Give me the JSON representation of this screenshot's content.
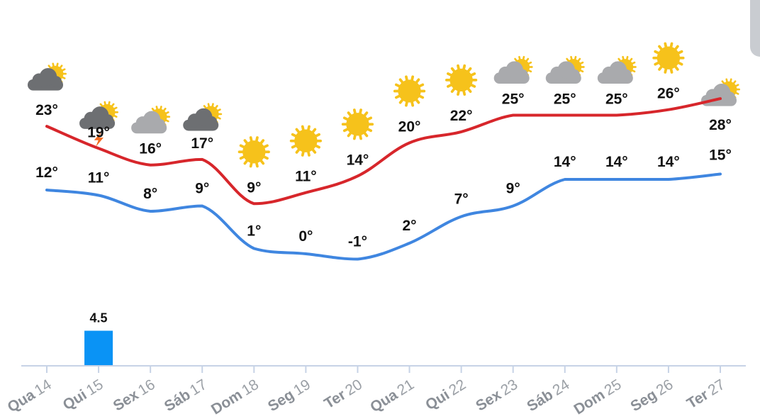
{
  "chart_data": {
    "type": "line",
    "categories": [
      {
        "day": "Qua",
        "date": "14"
      },
      {
        "day": "Qui",
        "date": "15"
      },
      {
        "day": "Sex",
        "date": "16"
      },
      {
        "day": "Sáb",
        "date": "17"
      },
      {
        "day": "Dom",
        "date": "18"
      },
      {
        "day": "Seg",
        "date": "19"
      },
      {
        "day": "Ter",
        "date": "20"
      },
      {
        "day": "Qua",
        "date": "21"
      },
      {
        "day": "Qui",
        "date": "22"
      },
      {
        "day": "Sex",
        "date": "23"
      },
      {
        "day": "Sáb",
        "date": "24"
      },
      {
        "day": "Dom",
        "date": "25"
      },
      {
        "day": "Seg",
        "date": "26"
      },
      {
        "day": "Ter",
        "date": "27"
      }
    ],
    "series": [
      {
        "key": "max",
        "color": "#d7262b",
        "values": [
          23,
          19,
          16,
          17,
          9,
          11,
          14,
          20,
          22,
          25,
          25,
          25,
          26,
          28
        ],
        "labels": [
          "23°",
          "19°",
          "16°",
          "17°",
          "9°",
          "11°",
          "14°",
          "20°",
          "22°",
          "25°",
          "25°",
          "25°",
          "26°",
          "28°"
        ]
      },
      {
        "key": "min",
        "color": "#3f86e0",
        "values": [
          12,
          11,
          8,
          9,
          1,
          0,
          -1,
          2,
          7,
          9,
          14,
          14,
          14,
          15
        ],
        "labels": [
          "12°",
          "11°",
          "8°",
          "9°",
          "1°",
          "0°",
          "-1°",
          "2°",
          "7°",
          "9°",
          "14°",
          "14°",
          "14°",
          "15°"
        ]
      }
    ],
    "precipitation": {
      "color": "#0a93f5",
      "values": [
        0,
        4.5,
        0,
        0,
        0,
        0,
        0,
        0,
        0,
        0,
        0,
        0,
        0,
        0
      ],
      "labels": [
        "",
        "4.5",
        "",
        "",
        "",
        "",
        "",
        "",
        "",
        "",
        "",
        "",
        "",
        ""
      ]
    },
    "icons": [
      "cloudy-partly-sunny-icon",
      "thunderstorm-partly-sunny-icon",
      "partly-cloudy-icon",
      "cloudy-partly-sunny-icon",
      "sunny-icon",
      "sunny-icon",
      "sunny-icon",
      "sunny-icon",
      "sunny-icon",
      "partly-cloudy-icon",
      "partly-cloudy-icon",
      "partly-cloudy-icon",
      "sunny-icon",
      "partly-cloudy-icon"
    ],
    "grid": false,
    "legend": "none",
    "axis_color": "#c7d3e6"
  }
}
